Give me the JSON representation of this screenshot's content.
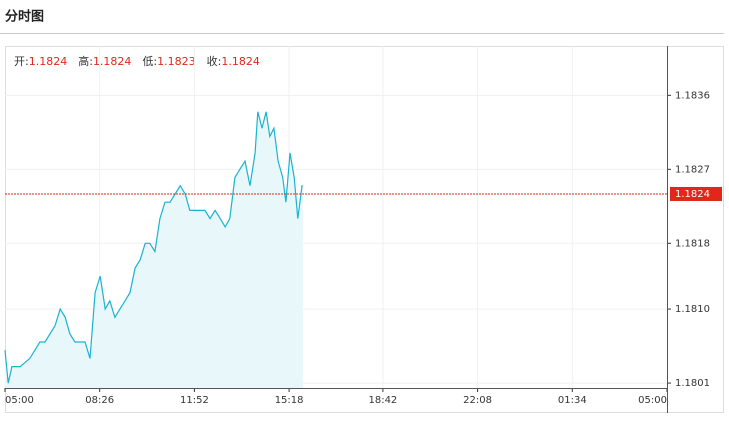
{
  "chart_data": {
    "type": "line",
    "title": "分时图",
    "stats": [
      {
        "label": "开:",
        "value": "1.1824"
      },
      {
        "label": "高:",
        "value": "1.1824"
      },
      {
        "label": "低:",
        "value": "1.1823"
      },
      {
        "label": "收:",
        "value": "1.1824"
      }
    ],
    "x": [
      0,
      7,
      15,
      33,
      54,
      65,
      76,
      87,
      98,
      109,
      120,
      131,
      141,
      152,
      163,
      174,
      185,
      196,
      207,
      218,
      228,
      239,
      250,
      261,
      272,
      283,
      294,
      305,
      315,
      326,
      337,
      348,
      359,
      370,
      381,
      392,
      402,
      413,
      424,
      435,
      446,
      457,
      468,
      479,
      489,
      500,
      511,
      522,
      533,
      544,
      550,
      559,
      568,
      576,
      585,
      594,
      604,
      611,
      620,
      629,
      637,
      646,
      648
    ],
    "series": [
      {
        "color": "#1ab3d0",
        "fill": "#e8f8fa",
        "values": [
          1.1805,
          1.1801,
          1.1803,
          1.1803,
          1.1804,
          1.1805,
          1.1806,
          1.1806,
          1.1807,
          1.1808,
          1.181,
          1.1809,
          1.1807,
          1.1806,
          1.1806,
          1.1806,
          1.1804,
          1.1812,
          1.1814,
          1.181,
          1.1811,
          1.1809,
          1.181,
          1.1811,
          1.1812,
          1.1815,
          1.1816,
          1.1818,
          1.1818,
          1.1817,
          1.1821,
          1.1823,
          1.1823,
          1.1824,
          1.1825,
          1.1824,
          1.1822,
          1.1822,
          1.1822,
          1.1822,
          1.1821,
          1.1822,
          1.1821,
          1.182,
          1.1821,
          1.1826,
          1.1827,
          1.1828,
          1.1825,
          1.1829,
          1.1834,
          1.1832,
          1.1834,
          1.1831,
          1.1832,
          1.1828,
          1.1826,
          1.1823,
          1.1829,
          1.1826,
          1.1821,
          1.1825,
          1.1825
        ]
      }
    ],
    "xlim": [
      0,
      1440
    ],
    "xticks": [
      {
        "value": 0,
        "label": "05:00"
      },
      {
        "value": 206,
        "label": "08:26"
      },
      {
        "value": 412,
        "label": "11:52"
      },
      {
        "value": 618,
        "label": "15:18"
      },
      {
        "value": 822,
        "label": "18:42"
      },
      {
        "value": 1028,
        "label": "22:08"
      },
      {
        "value": 1234,
        "label": "01:34"
      },
      {
        "value": 1440,
        "label": "05:00"
      }
    ],
    "ylim": [
      1.18004,
      1.1842
    ],
    "yticks": [
      {
        "value": 1.1801,
        "label": "1.1801"
      },
      {
        "value": 1.181,
        "label": "1.1810"
      },
      {
        "value": 1.1818,
        "label": "1.1818"
      },
      {
        "value": 1.1827,
        "label": "1.1827"
      },
      {
        "value": 1.1836,
        "label": "1.1836"
      }
    ],
    "ref_line": {
      "value": 1.1824,
      "color": "#e0271a"
    },
    "grid": true
  }
}
